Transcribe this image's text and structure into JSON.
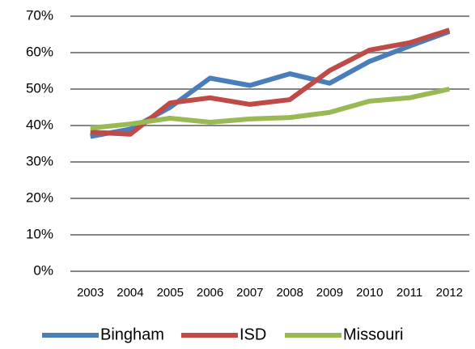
{
  "chart_data": {
    "type": "line",
    "categories": [
      "2003",
      "2004",
      "2005",
      "2006",
      "2007",
      "2008",
      "2009",
      "2010",
      "2011",
      "2012"
    ],
    "series": [
      {
        "name": "Bingham",
        "color": "#4a7ebb",
        "values": [
          37,
          39,
          45,
          53,
          51,
          54.2,
          51.6,
          57.6,
          61.8,
          65.8
        ]
      },
      {
        "name": "ISD",
        "color": "#be4b48",
        "values": [
          38.2,
          37.6,
          46.2,
          47.6,
          45.8,
          47.1,
          55.1,
          60.7,
          62.7,
          66.2
        ]
      },
      {
        "name": "Missouri",
        "color": "#98b954",
        "values": [
          39.3,
          40.4,
          42,
          40.9,
          41.8,
          42.2,
          43.6,
          46.7,
          47.6,
          50
        ]
      }
    ],
    "ylim": [
      0,
      70
    ],
    "yticks": [
      {
        "value": 0,
        "label": "0%"
      },
      {
        "value": 10,
        "label": "10%"
      },
      {
        "value": 20,
        "label": "20%"
      },
      {
        "value": 30,
        "label": "30%"
      },
      {
        "value": 40,
        "label": "40%"
      },
      {
        "value": 50,
        "label": "50%"
      },
      {
        "value": 60,
        "label": "60%"
      },
      {
        "value": 70,
        "label": "70%"
      }
    ],
    "grid": true,
    "legend": "bottom"
  }
}
